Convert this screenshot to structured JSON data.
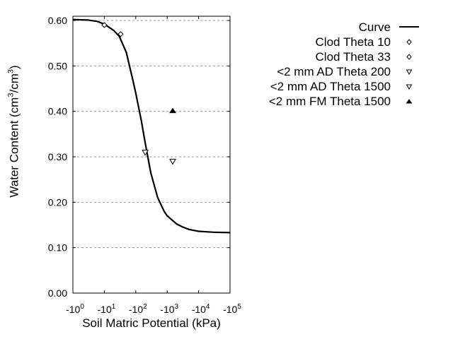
{
  "chart_data": {
    "type": "line",
    "title": "",
    "xlabel": "Soil Matric Potential (kPa)",
    "ylabel_prefix": "Water Content (cm",
    "ylabel": "Water Content (cm3/cm3)",
    "x_scale": "log (negative potentials)",
    "xlim": [
      -1,
      -100000
    ],
    "ylim": [
      0.0,
      0.6
    ],
    "grid": "horizontal dotted",
    "legend_position": "right, outside plot",
    "x_ticks": [
      {
        "base": "-10",
        "exp": "0"
      },
      {
        "base": "-10",
        "exp": "1"
      },
      {
        "base": "-10",
        "exp": "2"
      },
      {
        "base": "-10",
        "exp": "3"
      },
      {
        "base": "-10",
        "exp": "4"
      },
      {
        "base": "-10",
        "exp": "5"
      }
    ],
    "y_ticks": [
      "0.00",
      "0.10",
      "0.20",
      "0.30",
      "0.40",
      "0.50",
      "0.60"
    ],
    "series": [
      {
        "name": "Curve",
        "type": "line",
        "x": [
          -1,
          -3,
          -6,
          -10,
          -20,
          -30,
          -50,
          -80,
          -100,
          -150,
          -200,
          -300,
          -500,
          -800,
          -1000,
          -2000,
          -3000,
          -5000,
          -10000,
          -30000,
          -100000
        ],
        "y": [
          0.602,
          0.601,
          0.598,
          0.592,
          0.578,
          0.565,
          0.53,
          0.47,
          0.44,
          0.38,
          0.33,
          0.265,
          0.21,
          0.18,
          0.17,
          0.152,
          0.146,
          0.14,
          0.136,
          0.134,
          0.133
        ]
      },
      {
        "name": "Clod Theta 10",
        "type": "scatter",
        "marker": "diamond-open",
        "x": [
          -10
        ],
        "y": [
          0.59
        ]
      },
      {
        "name": "Clod Theta 33",
        "type": "scatter",
        "marker": "diamond-open",
        "x": [
          -33
        ],
        "y": [
          0.57
        ]
      },
      {
        "name": "<2 mm AD Theta 200",
        "type": "scatter",
        "marker": "triangle-down-open",
        "x": [
          -200
        ],
        "y": [
          0.31
        ]
      },
      {
        "name": "<2 mm AD Theta 1500",
        "type": "scatter",
        "marker": "triangle-down-open",
        "x": [
          -1500
        ],
        "y": [
          0.29
        ]
      },
      {
        "name": "<2 mm FM Theta 1500",
        "type": "scatter",
        "marker": "triangle-up-filled",
        "x": [
          -1500
        ],
        "y": [
          0.4
        ]
      }
    ]
  },
  "axis": {
    "ylabel_prefix": "Water Content (cm",
    "sup1": "3",
    "ylabel_mid": "/cm",
    "sup2": "3",
    "ylabel_suffix": ")",
    "xlabel": "Soil Matric Potential (kPa)"
  },
  "legend": [
    {
      "label": "Curve",
      "symbol": "line"
    },
    {
      "label": "Clod Theta 10",
      "symbol": "diamond-open"
    },
    {
      "label": "Clod Theta 33",
      "symbol": "diamond-open"
    },
    {
      "label": "<2 mm AD Theta 200",
      "symbol": "triangle-down-open"
    },
    {
      "label": "<2 mm AD Theta 1500",
      "symbol": "triangle-down-open"
    },
    {
      "label": "<2 mm FM Theta 1500",
      "symbol": "triangle-up-filled"
    }
  ],
  "colors": {
    "line": "#000000",
    "grid": "#999999",
    "background": "#ffffff"
  }
}
